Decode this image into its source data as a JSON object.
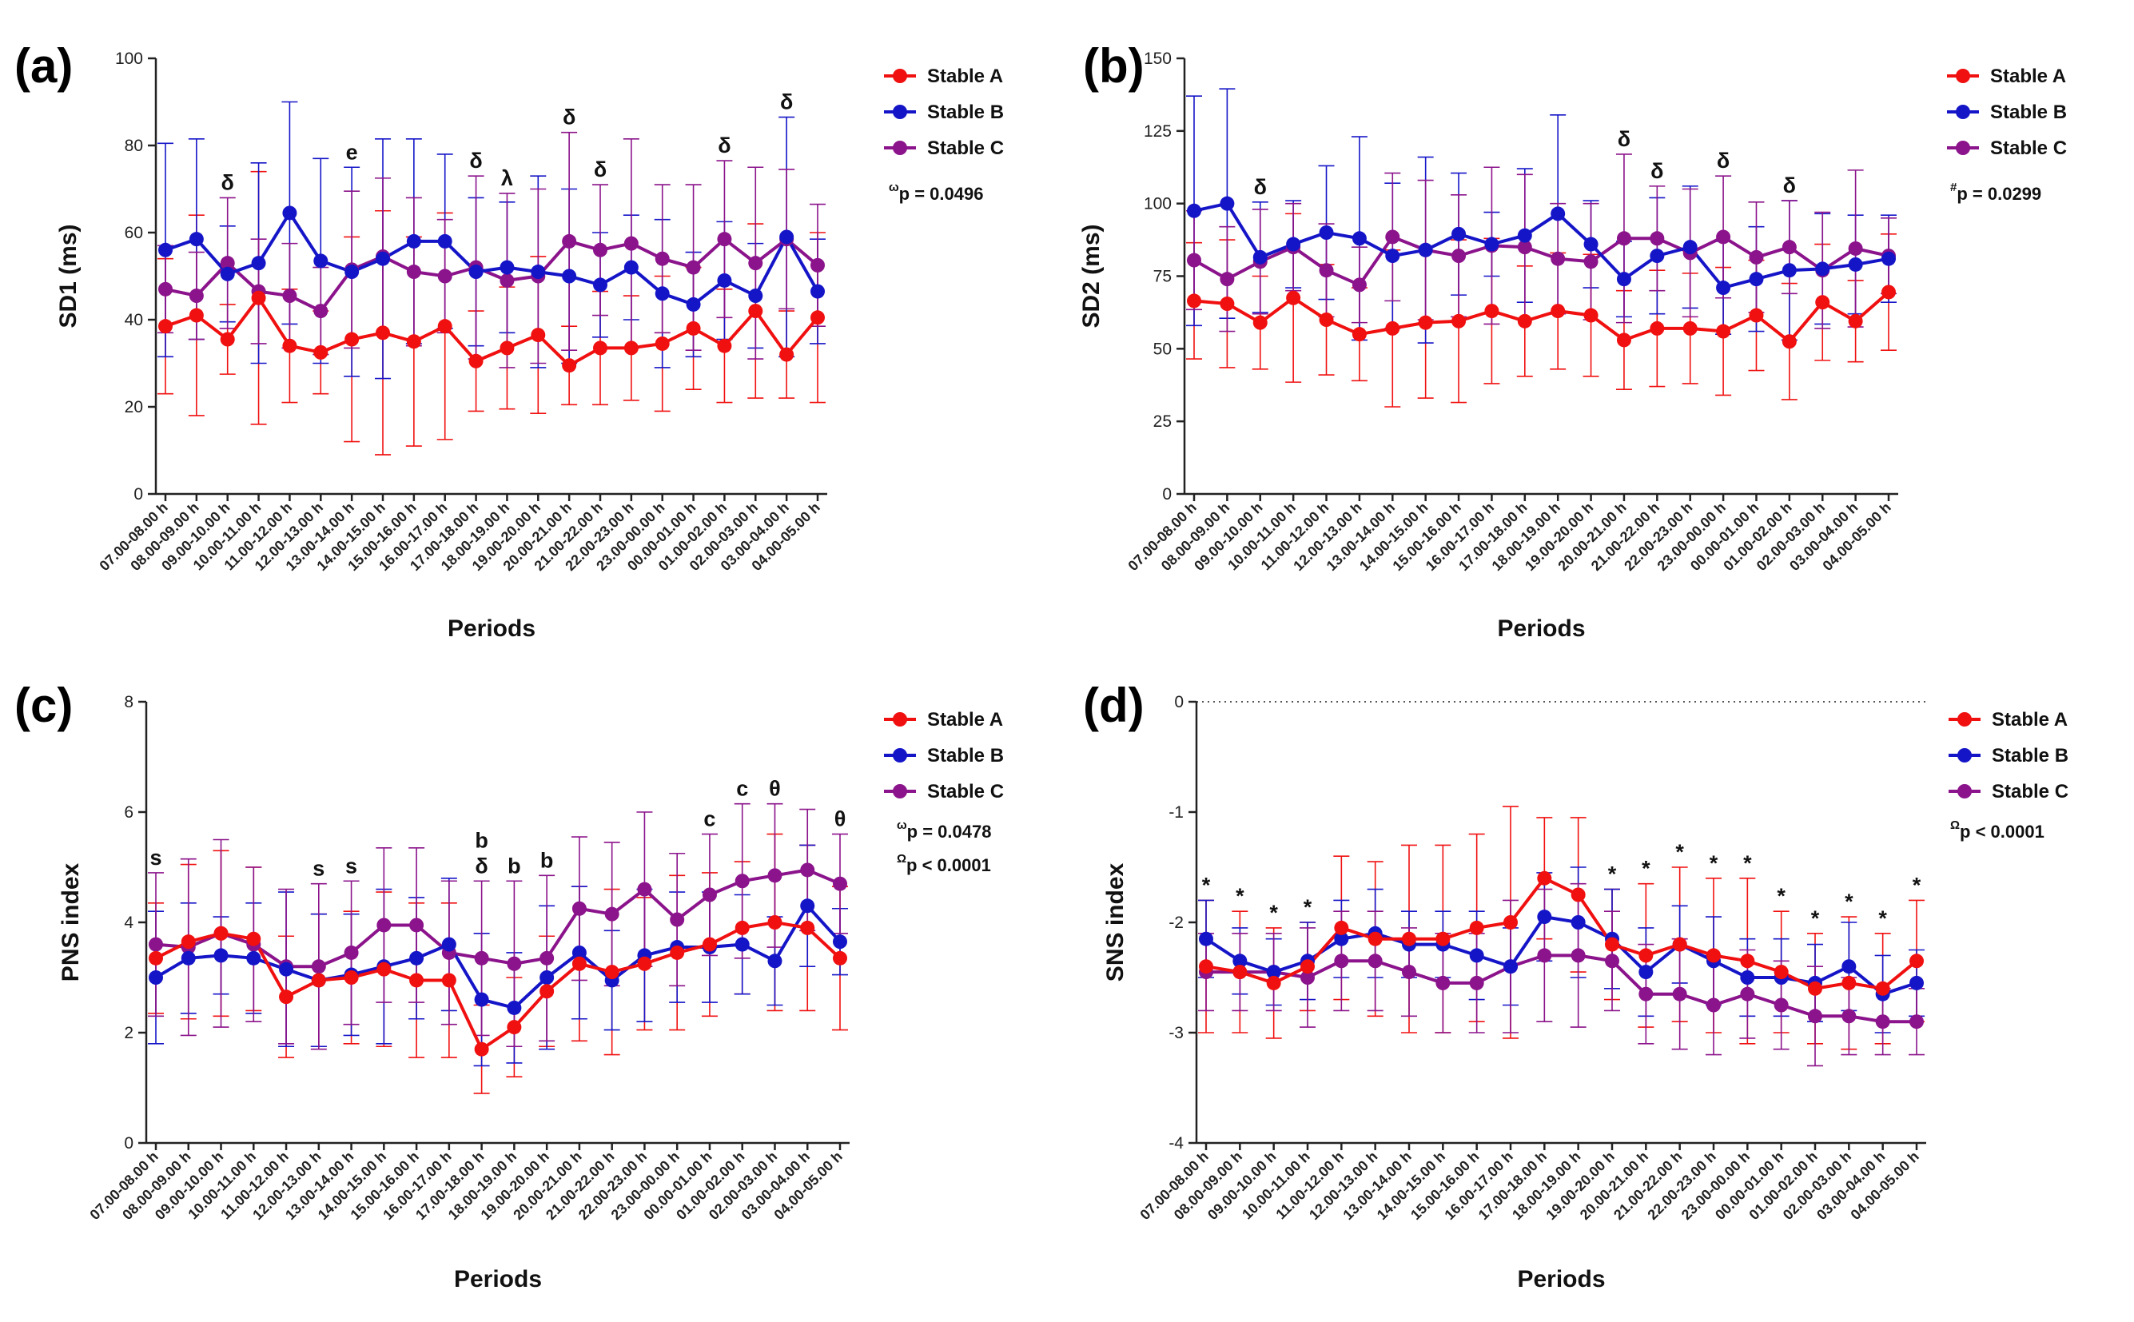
{
  "colors": {
    "Stable A": "#f01010",
    "Stable B": "#1515c8",
    "Stable C": "#8b138b"
  },
  "chart_data": [
    {
      "type": "line",
      "panel": "(a)",
      "ylabel": "SD1 (ms)",
      "xlabel": "Periods",
      "ylim": [
        0,
        100
      ],
      "yticks": [
        0,
        20,
        40,
        60,
        80,
        100
      ],
      "legend_placement": "top-right",
      "categories": [
        "07.00-08.00 h",
        "08.00-09.00 h",
        "09.00-10.00 h",
        "10.00-11.00 h",
        "11.00-12.00 h",
        "12.00-13.00 h",
        "13.00-14.00 h",
        "14.00-15.00 h",
        "15.00-16.00 h",
        "16.00-17.00 h",
        "17.00-18.00 h",
        "18.00-19.00 h",
        "19.00-20.00 h",
        "20.00-21.00 h",
        "21.00-22.00 h",
        "22.00-23.00 h",
        "23.00-00.00 h",
        "00.00-01.00 h",
        "01.00-02.00 h",
        "02.00-03.00 h",
        "03.00-04.00 h",
        "04.00-05.00 h"
      ],
      "series": [
        {
          "name": "Stable A",
          "values": [
            38.5,
            41,
            35.5,
            45,
            34,
            32.5,
            35.5,
            37,
            35,
            38.5,
            30.5,
            33.5,
            36.5,
            29.5,
            33.5,
            33.5,
            34.5,
            38,
            34,
            42,
            32,
            40.5
          ],
          "errors": [
            15.5,
            23,
            8,
            29,
            13,
            9.5,
            23.5,
            28,
            24,
            26,
            11.5,
            14,
            18,
            9,
            13,
            12,
            15.5,
            14,
            13,
            20,
            10,
            19.5
          ]
        },
        {
          "name": "Stable B",
          "values": [
            56,
            58.5,
            50.5,
            53,
            64.5,
            53.5,
            51,
            54,
            58,
            58,
            51,
            52,
            51,
            50,
            48,
            52,
            46,
            43.5,
            49,
            45.5,
            59,
            46.5
          ],
          "errors": [
            24.5,
            23,
            11,
            23,
            25.5,
            23.5,
            24,
            27.5,
            23.5,
            20,
            17,
            15,
            22,
            20,
            12,
            12,
            17,
            12,
            13.5,
            12,
            27.5,
            12
          ]
        },
        {
          "name": "Stable C",
          "values": [
            47,
            45.5,
            53,
            46.5,
            45.5,
            42,
            51.5,
            54.5,
            51,
            50,
            52,
            49,
            50,
            58,
            56,
            57.5,
            54,
            52,
            58.5,
            53,
            58.5,
            52.5
          ],
          "errors": [
            10,
            10,
            15,
            12,
            12,
            10,
            18,
            18,
            17,
            13,
            21,
            20,
            20,
            25,
            15,
            24,
            17,
            19,
            18,
            22,
            16,
            14
          ]
        }
      ],
      "annotations": [
        {
          "category": "09.00-10.00 h",
          "text": "δ"
        },
        {
          "category": "13.00-14.00 h",
          "text": "e"
        },
        {
          "category": "17.00-18.00 h",
          "text": "δ"
        },
        {
          "category": "18.00-19.00 h",
          "text": "λ"
        },
        {
          "category": "20.00-21.00 h",
          "text": "δ"
        },
        {
          "category": "21.00-22.00 h",
          "text": "δ"
        },
        {
          "category": "01.00-02.00 h",
          "text": "δ"
        },
        {
          "category": "03.00-04.00 h",
          "text": "δ"
        }
      ],
      "notes": [
        {
          "sup": "ω",
          "text": "p = 0.0496"
        }
      ]
    },
    {
      "type": "line",
      "panel": "(b)",
      "ylabel": "SD2 (ms)",
      "xlabel": "Periods",
      "ylim": [
        0,
        150
      ],
      "yticks": [
        0,
        25,
        50,
        75,
        100,
        125,
        150
      ],
      "legend_placement": "top-right",
      "categories": [
        "07.00-08.00 h",
        "08.00-09.00 h",
        "09.00-10.00 h",
        "10.00-11.00 h",
        "11.00-12.00 h",
        "12.00-13.00 h",
        "13.00-14.00 h",
        "14.00-15.00 h",
        "15.00-16.00 h",
        "16.00-17.00 h",
        "17.00-18.00 h",
        "18.00-19.00 h",
        "19.00-20.00 h",
        "20.00-21.00 h",
        "21.00-22.00 h",
        "22.00-23.00 h",
        "23.00-00.00 h",
        "00.00-01.00 h",
        "01.00-02.00 h",
        "02.00-03.00 h",
        "03.00-04.00 h",
        "04.00-05.00 h"
      ],
      "series": [
        {
          "name": "Stable A",
          "values": [
            66.5,
            65.5,
            59,
            67.5,
            60,
            55,
            57,
            59,
            59.5,
            63,
            59.5,
            63,
            61.5,
            53,
            57,
            57,
            56,
            61.5,
            52.5,
            66,
            59.5,
            69.5
          ],
          "errors": [
            20,
            22,
            16,
            29,
            19,
            16,
            27,
            26,
            28,
            25,
            19,
            20,
            21,
            17,
            20,
            19,
            22,
            19,
            20,
            20,
            14,
            20
          ]
        },
        {
          "name": "Stable B",
          "values": [
            97.5,
            100,
            81.5,
            86,
            90,
            88,
            82,
            84,
            89.5,
            86,
            89,
            96.5,
            86,
            74,
            82,
            85,
            71,
            74,
            77,
            77.5,
            79,
            81
          ],
          "errors": [
            39.5,
            39.5,
            19,
            15,
            23,
            35,
            25,
            32,
            21,
            11,
            23,
            34,
            15,
            13,
            20,
            21,
            16,
            18,
            24,
            19,
            17,
            15
          ]
        },
        {
          "name": "Stable C",
          "values": [
            80.5,
            74,
            80,
            85,
            77,
            72,
            88.5,
            84,
            82,
            85.5,
            85,
            81,
            80,
            88,
            88,
            83,
            88.5,
            81.5,
            85,
            77,
            84.5,
            82
          ],
          "errors": [
            17,
            18,
            18,
            15,
            16,
            13,
            22,
            24,
            21,
            27,
            25,
            19,
            20,
            29,
            18,
            22,
            21,
            19,
            16,
            20,
            27,
            13
          ]
        }
      ],
      "annotations": [
        {
          "category": "09.00-10.00 h",
          "text": "δ"
        },
        {
          "category": "20.00-21.00 h",
          "text": "δ"
        },
        {
          "category": "21.00-22.00 h",
          "text": "δ"
        },
        {
          "category": "23.00-00.00 h",
          "text": "δ"
        },
        {
          "category": "01.00-02.00 h",
          "text": "δ"
        }
      ],
      "notes": [
        {
          "sup": "#",
          "text": "p = 0.0299"
        }
      ]
    },
    {
      "type": "line",
      "panel": "(c)",
      "ylabel": "PNS index",
      "xlabel": "Periods",
      "ylim": [
        0,
        8
      ],
      "yticks": [
        0,
        2,
        4,
        6,
        8
      ],
      "legend_placement": "top-right",
      "categories": [
        "07.00-08.00 h",
        "08.00-09.00 h",
        "09.00-10.00 h",
        "10.00-11.00 h",
        "11.00-12.00 h",
        "12.00-13.00 h",
        "13.00-14.00 h",
        "14.00-15.00 h",
        "15.00-16.00 h",
        "16.00-17.00 h",
        "17.00-18.00 h",
        "18.00-19.00 h",
        "19.00-20.00 h",
        "20.00-21.00 h",
        "21.00-22.00 h",
        "22.00-23.00 h",
        "23.00-00.00 h",
        "00.00-01.00 h",
        "01.00-02.00 h",
        "02.00-03.00 h",
        "03.00-04.00 h",
        "04.00-05.00 h"
      ],
      "series": [
        {
          "name": "Stable A",
          "values": [
            3.35,
            3.65,
            3.8,
            3.7,
            2.65,
            2.95,
            3,
            3.15,
            2.95,
            2.95,
            1.7,
            2.1,
            2.75,
            3.25,
            3.1,
            3.25,
            3.45,
            3.6,
            3.9,
            4,
            3.9,
            3.35
          ],
          "errors": [
            1,
            1.4,
            1.5,
            1.3,
            1.1,
            1.2,
            1.2,
            1.4,
            1.4,
            1.4,
            0.8,
            0.9,
            1,
            1.4,
            1.5,
            1.2,
            1.4,
            1.3,
            1.2,
            1.6,
            1.5,
            1.3
          ]
        },
        {
          "name": "Stable B",
          "values": [
            3,
            3.35,
            3.4,
            3.35,
            3.15,
            2.95,
            3.05,
            3.2,
            3.35,
            3.6,
            2.6,
            2.45,
            3,
            3.45,
            2.95,
            3.4,
            3.55,
            3.55,
            3.6,
            3.3,
            4.3,
            3.65
          ],
          "errors": [
            1.2,
            1,
            0.7,
            1,
            1.4,
            1.2,
            1.1,
            1.4,
            1.1,
            1.2,
            1.2,
            1,
            1.3,
            1.2,
            0.9,
            1.2,
            1,
            1,
            0.9,
            0.8,
            1.1,
            0.6
          ]
        },
        {
          "name": "Stable C",
          "values": [
            3.6,
            3.55,
            3.8,
            3.6,
            3.2,
            3.2,
            3.45,
            3.95,
            3.95,
            3.45,
            3.35,
            3.25,
            3.35,
            4.25,
            4.15,
            4.6,
            4.05,
            4.5,
            4.75,
            4.85,
            4.95,
            4.7
          ],
          "errors": [
            1.3,
            1.6,
            1.7,
            1.4,
            1.4,
            1.5,
            1.3,
            1.4,
            1.4,
            1.3,
            1.4,
            1.5,
            1.5,
            1.3,
            1.3,
            1.4,
            1.2,
            1.1,
            1.4,
            1.3,
            1.1,
            0.9
          ]
        }
      ],
      "annotations": [
        {
          "category": "07.00-08.00 h",
          "text": "s"
        },
        {
          "category": "12.00-13.00 h",
          "text": "s"
        },
        {
          "category": "13.00-14.00 h",
          "text": "s"
        },
        {
          "category": "17.00-18.00 h",
          "text": "δ"
        },
        {
          "category": "17.00-18.00 h",
          "text": "b"
        },
        {
          "category": "18.00-19.00 h",
          "text": "b"
        },
        {
          "category": "19.00-20.00 h",
          "text": "b"
        },
        {
          "category": "00.00-01.00 h",
          "text": "c"
        },
        {
          "category": "01.00-02.00 h",
          "text": "c"
        },
        {
          "category": "02.00-03.00 h",
          "text": "θ"
        },
        {
          "category": "04.00-05.00 h",
          "text": "θ"
        }
      ],
      "notes": [
        {
          "sup": "ω",
          "text": "p = 0.0478"
        },
        {
          "sup": "Ω",
          "text": "p < 0.0001"
        }
      ]
    },
    {
      "type": "line",
      "panel": "(d)",
      "ylabel": "SNS index",
      "xlabel": "Periods",
      "ylim": [
        -4,
        0
      ],
      "yticks": [
        -4,
        -3,
        -2,
        -1,
        0
      ],
      "zero_line": "dotted",
      "legend_placement": "top-right",
      "categories": [
        "07.00-08.00 h",
        "08.00-09.00 h",
        "09.00-10.00 h",
        "10.00-11.00 h",
        "11.00-12.00 h",
        "12.00-13.00 h",
        "13.00-14.00 h",
        "14.00-15.00 h",
        "15.00-16.00 h",
        "16.00-17.00 h",
        "17.00-18.00 h",
        "18.00-19.00 h",
        "19.00-20.00 h",
        "20.00-21.00 h",
        "21.00-22.00 h",
        "22.00-23.00 h",
        "23.00-00.00 h",
        "00.00-01.00 h",
        "01.00-02.00 h",
        "02.00-03.00 h",
        "03.00-04.00 h",
        "04.00-05.00 h"
      ],
      "series": [
        {
          "name": "Stable A",
          "values": [
            -2.4,
            -2.45,
            -2.55,
            -2.4,
            -2.05,
            -2.15,
            -2.15,
            -2.15,
            -2.05,
            -2,
            -1.6,
            -1.75,
            -2.2,
            -2.3,
            -2.2,
            -2.3,
            -2.35,
            -2.45,
            -2.6,
            -2.55,
            -2.6,
            -2.35
          ],
          "errors": [
            0.6,
            0.55,
            0.5,
            0.4,
            0.65,
            0.7,
            0.85,
            0.85,
            0.85,
            1.05,
            0.55,
            0.7,
            0.5,
            0.65,
            0.7,
            0.7,
            0.75,
            0.55,
            0.5,
            0.6,
            0.5,
            0.55
          ]
        },
        {
          "name": "Stable B",
          "values": [
            -2.15,
            -2.35,
            -2.45,
            -2.35,
            -2.15,
            -2.1,
            -2.2,
            -2.2,
            -2.3,
            -2.4,
            -1.95,
            -2,
            -2.15,
            -2.45,
            -2.2,
            -2.35,
            -2.5,
            -2.5,
            -2.55,
            -2.4,
            -2.65,
            -2.55
          ],
          "errors": [
            0.35,
            0.3,
            0.3,
            0.35,
            0.35,
            0.4,
            0.3,
            0.3,
            0.4,
            0.35,
            0.4,
            0.5,
            0.45,
            0.4,
            0.35,
            0.4,
            0.35,
            0.35,
            0.35,
            0.4,
            0.35,
            0.3
          ]
        },
        {
          "name": "Stable C",
          "values": [
            -2.45,
            -2.45,
            -2.45,
            -2.5,
            -2.35,
            -2.35,
            -2.45,
            -2.55,
            -2.55,
            -2.4,
            -2.3,
            -2.3,
            -2.35,
            -2.65,
            -2.65,
            -2.75,
            -2.65,
            -2.75,
            -2.85,
            -2.85,
            -2.9,
            -2.9
          ],
          "errors": [
            0.35,
            0.35,
            0.35,
            0.45,
            0.45,
            0.45,
            0.4,
            0.45,
            0.45,
            0.6,
            0.6,
            0.65,
            0.45,
            0.45,
            0.5,
            0.45,
            0.4,
            0.4,
            0.45,
            0.35,
            0.3,
            0.3
          ]
        }
      ],
      "annotations": [
        {
          "category": "07.00-08.00 h",
          "text": "*"
        },
        {
          "category": "08.00-09.00 h",
          "text": "*"
        },
        {
          "category": "09.00-10.00 h",
          "text": "*"
        },
        {
          "category": "10.00-11.00 h",
          "text": "*"
        },
        {
          "category": "19.00-20.00 h",
          "text": "*"
        },
        {
          "category": "20.00-21.00 h",
          "text": "*"
        },
        {
          "category": "21.00-22.00 h",
          "text": "*"
        },
        {
          "category": "22.00-23.00 h",
          "text": "*"
        },
        {
          "category": "23.00-00.00 h",
          "text": "*"
        },
        {
          "category": "00.00-01.00 h",
          "text": "*"
        },
        {
          "category": "01.00-02.00 h",
          "text": "*"
        },
        {
          "category": "02.00-03.00 h",
          "text": "*"
        },
        {
          "category": "03.00-04.00 h",
          "text": "*"
        },
        {
          "category": "04.00-05.00 h",
          "text": "*"
        }
      ],
      "notes": [
        {
          "sup": "Ω",
          "text": "p < 0.0001"
        }
      ]
    }
  ]
}
